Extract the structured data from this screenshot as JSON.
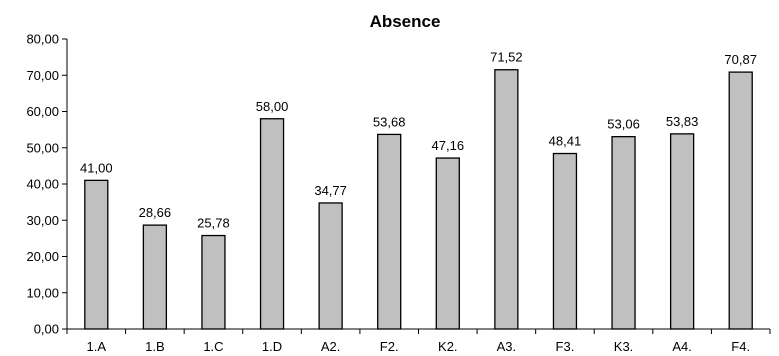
{
  "chart_data": {
    "type": "bar",
    "title": "Absence",
    "xlabel": "",
    "ylabel": "",
    "categories": [
      "1.A",
      "1.B",
      "1.C",
      "1.D",
      "A2.",
      "F2.",
      "K2.",
      "A3.",
      "F3.",
      "K3.",
      "A4.",
      "F4."
    ],
    "values": [
      41.0,
      28.66,
      25.78,
      58.0,
      34.77,
      53.68,
      47.16,
      71.52,
      48.41,
      53.06,
      53.83,
      70.87
    ],
    "value_labels": [
      "41,00",
      "28,66",
      "25,78",
      "58,00",
      "34,77",
      "53,68",
      "47,16",
      "71,52",
      "48,41",
      "53,06",
      "53,83",
      "70,87"
    ],
    "ylim": [
      0,
      80
    ],
    "yticks": [
      0,
      10,
      20,
      30,
      40,
      50,
      60,
      70,
      80
    ],
    "ytick_labels": [
      "0,00",
      "10,00",
      "20,00",
      "30,00",
      "40,00",
      "50,00",
      "60,00",
      "70,00",
      "80,00"
    ],
    "grid": false,
    "legend": "none",
    "bar_color": "#c0c0c0",
    "bar_edge_color": "#000000"
  }
}
